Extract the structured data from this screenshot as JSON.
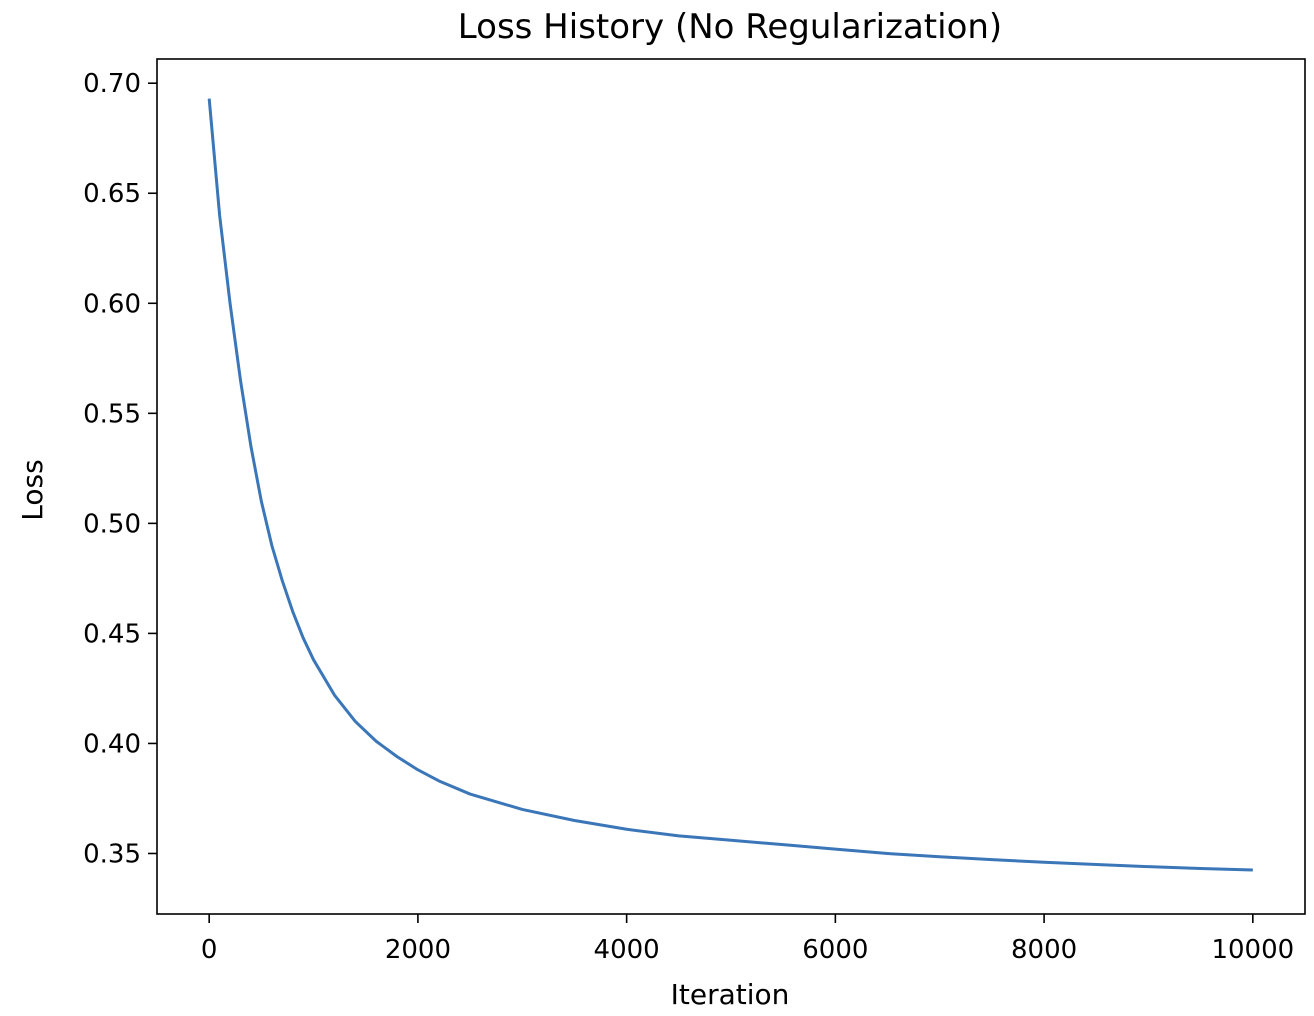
{
  "chart_data": {
    "type": "line",
    "title": "Loss History (No Regularization)",
    "xlabel": "Iteration",
    "ylabel": "Loss",
    "xlim": [
      -500,
      10500
    ],
    "ylim": [
      0.3225,
      0.711
    ],
    "xticks": [
      0,
      2000,
      4000,
      6000,
      8000,
      10000
    ],
    "xtick_labels": [
      "0",
      "2000",
      "4000",
      "6000",
      "8000",
      "10000"
    ],
    "yticks": [
      0.35,
      0.4,
      0.45,
      0.5,
      0.55,
      0.6,
      0.65,
      0.7
    ],
    "ytick_labels": [
      "0.35",
      "0.40",
      "0.45",
      "0.50",
      "0.55",
      "0.60",
      "0.65",
      "0.70"
    ],
    "grid": false,
    "legend": null,
    "series": [
      {
        "color": "#3a76b8",
        "x": [
          0,
          100,
          200,
          300,
          400,
          500,
          600,
          700,
          800,
          900,
          1000,
          1200,
          1400,
          1600,
          1800,
          2000,
          2200,
          2500,
          3000,
          3500,
          4000,
          4500,
          5000,
          5500,
          6000,
          6500,
          7000,
          7500,
          8000,
          8500,
          9000,
          9500,
          10000
        ],
        "y": [
          0.693,
          0.64,
          0.6,
          0.565,
          0.535,
          0.51,
          0.49,
          0.474,
          0.46,
          0.448,
          0.438,
          0.422,
          0.41,
          0.401,
          0.394,
          0.388,
          0.383,
          0.377,
          0.37,
          0.365,
          0.361,
          0.358,
          0.356,
          0.354,
          0.352,
          0.35,
          0.3485,
          0.3472,
          0.346,
          0.345,
          0.344,
          0.3432,
          0.3425
        ]
      }
    ]
  }
}
